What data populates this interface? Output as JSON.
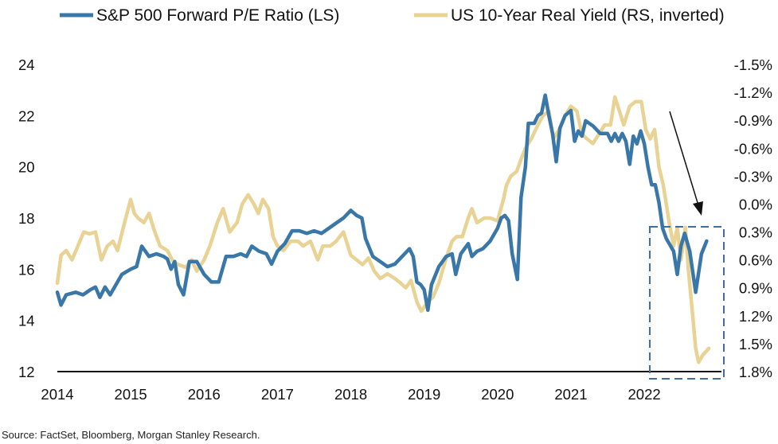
{
  "chart_data": {
    "type": "line",
    "x_axis": {
      "tick_labels": [
        "2014",
        "2015",
        "2016",
        "2017",
        "2018",
        "2019",
        "2020",
        "2021",
        "2022"
      ],
      "range": [
        2014.0,
        2022.9
      ]
    },
    "y_axis_left": {
      "tick_labels": [
        "24",
        "22",
        "20",
        "18",
        "16",
        "14",
        "12"
      ],
      "range": [
        12,
        24
      ]
    },
    "y_axis_right": {
      "tick_labels": [
        "-1.5%",
        "-1.2%",
        "-0.9%",
        "-0.6%",
        "-0.3%",
        "0.0%",
        "0.3%",
        "0.6%",
        "0.9%",
        "1.2%",
        "1.5%",
        "1.8%"
      ],
      "range": [
        -1.5,
        1.8
      ],
      "inverted": true
    },
    "series": [
      {
        "name": "S&P 500 Forward P/E Ratio (LS)",
        "axis": "left",
        "color": "#3a77a9",
        "points": [
          [
            2014.0,
            15.1
          ],
          [
            2014.05,
            14.6
          ],
          [
            2014.12,
            15.0
          ],
          [
            2014.25,
            15.1
          ],
          [
            2014.35,
            15.0
          ],
          [
            2014.45,
            15.2
          ],
          [
            2014.52,
            15.3
          ],
          [
            2014.58,
            14.9
          ],
          [
            2014.65,
            15.3
          ],
          [
            2014.72,
            15.0
          ],
          [
            2014.8,
            15.4
          ],
          [
            2014.88,
            15.8
          ],
          [
            2015.0,
            16.0
          ],
          [
            2015.08,
            16.1
          ],
          [
            2015.15,
            16.9
          ],
          [
            2015.25,
            16.5
          ],
          [
            2015.35,
            16.6
          ],
          [
            2015.45,
            16.5
          ],
          [
            2015.5,
            16.4
          ],
          [
            2015.55,
            16.0
          ],
          [
            2015.6,
            16.3
          ],
          [
            2015.65,
            15.4
          ],
          [
            2015.72,
            15.0
          ],
          [
            2015.8,
            16.3
          ],
          [
            2015.9,
            16.3
          ],
          [
            2016.0,
            15.8
          ],
          [
            2016.1,
            15.5
          ],
          [
            2016.2,
            15.5
          ],
          [
            2016.3,
            16.5
          ],
          [
            2016.4,
            16.5
          ],
          [
            2016.5,
            16.6
          ],
          [
            2016.58,
            16.5
          ],
          [
            2016.65,
            16.9
          ],
          [
            2016.75,
            16.7
          ],
          [
            2016.85,
            16.6
          ],
          [
            2016.92,
            16.2
          ],
          [
            2017.0,
            16.7
          ],
          [
            2017.1,
            17.0
          ],
          [
            2017.2,
            17.5
          ],
          [
            2017.3,
            17.5
          ],
          [
            2017.4,
            17.4
          ],
          [
            2017.5,
            17.5
          ],
          [
            2017.6,
            17.4
          ],
          [
            2017.7,
            17.6
          ],
          [
            2017.8,
            17.8
          ],
          [
            2017.9,
            18.0
          ],
          [
            2018.0,
            18.3
          ],
          [
            2018.08,
            18.1
          ],
          [
            2018.15,
            18.0
          ],
          [
            2018.2,
            17.2
          ],
          [
            2018.3,
            16.5
          ],
          [
            2018.4,
            16.3
          ],
          [
            2018.5,
            16.1
          ],
          [
            2018.6,
            16.2
          ],
          [
            2018.7,
            16.5
          ],
          [
            2018.8,
            16.8
          ],
          [
            2018.85,
            16.5
          ],
          [
            2018.9,
            15.5
          ],
          [
            2018.95,
            15.4
          ],
          [
            2019.0,
            15.2
          ],
          [
            2019.05,
            14.4
          ],
          [
            2019.1,
            15.4
          ],
          [
            2019.2,
            16.1
          ],
          [
            2019.3,
            16.5
          ],
          [
            2019.38,
            16.6
          ],
          [
            2019.43,
            15.8
          ],
          [
            2019.5,
            16.6
          ],
          [
            2019.6,
            17.0
          ],
          [
            2019.65,
            16.5
          ],
          [
            2019.72,
            16.7
          ],
          [
            2019.8,
            16.8
          ],
          [
            2019.9,
            17.1
          ],
          [
            2020.0,
            17.6
          ],
          [
            2020.05,
            18.0
          ],
          [
            2020.1,
            18.1
          ],
          [
            2020.15,
            17.9
          ],
          [
            2020.2,
            16.6
          ],
          [
            2020.27,
            15.6
          ],
          [
            2020.32,
            18.8
          ],
          [
            2020.38,
            20.0
          ],
          [
            2020.42,
            21.7
          ],
          [
            2020.5,
            21.7
          ],
          [
            2020.55,
            22.0
          ],
          [
            2020.6,
            22.1
          ],
          [
            2020.65,
            22.8
          ],
          [
            2020.7,
            22.0
          ],
          [
            2020.75,
            21.3
          ],
          [
            2020.8,
            20.2
          ],
          [
            2020.85,
            21.5
          ],
          [
            2020.92,
            22.0
          ],
          [
            2021.0,
            22.2
          ],
          [
            2021.05,
            21.0
          ],
          [
            2021.1,
            21.4
          ],
          [
            2021.15,
            21.2
          ],
          [
            2021.2,
            21.8
          ],
          [
            2021.3,
            21.6
          ],
          [
            2021.4,
            21.3
          ],
          [
            2021.5,
            21.3
          ],
          [
            2021.55,
            21.0
          ],
          [
            2021.6,
            21.3
          ],
          [
            2021.65,
            21.0
          ],
          [
            2021.7,
            21.3
          ],
          [
            2021.75,
            21.0
          ],
          [
            2021.8,
            20.1
          ],
          [
            2021.85,
            21.2
          ],
          [
            2021.9,
            20.9
          ],
          [
            2021.95,
            21.4
          ],
          [
            2022.0,
            20.9
          ],
          [
            2022.05,
            20.0
          ],
          [
            2022.1,
            19.3
          ],
          [
            2022.15,
            19.3
          ],
          [
            2022.2,
            18.6
          ],
          [
            2022.25,
            17.6
          ],
          [
            2022.3,
            17.2
          ],
          [
            2022.4,
            16.7
          ],
          [
            2022.45,
            15.8
          ],
          [
            2022.5,
            16.9
          ],
          [
            2022.55,
            17.4
          ],
          [
            2022.62,
            16.7
          ],
          [
            2022.7,
            15.1
          ],
          [
            2022.78,
            16.6
          ],
          [
            2022.85,
            17.1
          ]
        ]
      },
      {
        "name": "US 10-Year Real Yield (RS, inverted)",
        "axis": "right",
        "color": "#e8d394",
        "points": [
          [
            2014.0,
            0.85
          ],
          [
            2014.05,
            0.55
          ],
          [
            2014.12,
            0.5
          ],
          [
            2014.2,
            0.6
          ],
          [
            2014.28,
            0.45
          ],
          [
            2014.36,
            0.3
          ],
          [
            2014.44,
            0.32
          ],
          [
            2014.52,
            0.3
          ],
          [
            2014.6,
            0.6
          ],
          [
            2014.68,
            0.45
          ],
          [
            2014.76,
            0.4
          ],
          [
            2014.82,
            0.5
          ],
          [
            2014.9,
            0.25
          ],
          [
            2015.0,
            -0.05
          ],
          [
            2015.05,
            0.1
          ],
          [
            2015.1,
            0.15
          ],
          [
            2015.18,
            0.2
          ],
          [
            2015.25,
            0.1
          ],
          [
            2015.32,
            0.28
          ],
          [
            2015.4,
            0.45
          ],
          [
            2015.5,
            0.5
          ],
          [
            2015.58,
            0.62
          ],
          [
            2015.65,
            0.65
          ],
          [
            2015.75,
            0.68
          ],
          [
            2015.83,
            0.6
          ],
          [
            2015.9,
            0.72
          ],
          [
            2016.0,
            0.6
          ],
          [
            2016.08,
            0.45
          ],
          [
            2016.18,
            0.2
          ],
          [
            2016.26,
            0.05
          ],
          [
            2016.35,
            0.3
          ],
          [
            2016.45,
            0.2
          ],
          [
            2016.52,
            0.0
          ],
          [
            2016.6,
            -0.1
          ],
          [
            2016.68,
            0.0
          ],
          [
            2016.74,
            0.1
          ],
          [
            2016.8,
            -0.05
          ],
          [
            2016.88,
            0.05
          ],
          [
            2016.94,
            0.35
          ],
          [
            2017.0,
            0.45
          ],
          [
            2017.08,
            0.5
          ],
          [
            2017.18,
            0.4
          ],
          [
            2017.28,
            0.4
          ],
          [
            2017.35,
            0.45
          ],
          [
            2017.45,
            0.4
          ],
          [
            2017.55,
            0.6
          ],
          [
            2017.62,
            0.45
          ],
          [
            2017.72,
            0.45
          ],
          [
            2017.8,
            0.4
          ],
          [
            2017.9,
            0.3
          ],
          [
            2018.0,
            0.55
          ],
          [
            2018.08,
            0.6
          ],
          [
            2018.16,
            0.65
          ],
          [
            2018.24,
            0.58
          ],
          [
            2018.32,
            0.72
          ],
          [
            2018.4,
            0.8
          ],
          [
            2018.5,
            0.75
          ],
          [
            2018.6,
            0.8
          ],
          [
            2018.68,
            0.85
          ],
          [
            2018.75,
            0.9
          ],
          [
            2018.82,
            0.82
          ],
          [
            2018.9,
            1.05
          ],
          [
            2018.96,
            1.15
          ],
          [
            2019.05,
            1.05
          ],
          [
            2019.12,
            1.0
          ],
          [
            2019.2,
            0.85
          ],
          [
            2019.3,
            0.58
          ],
          [
            2019.38,
            0.4
          ],
          [
            2019.44,
            0.35
          ],
          [
            2019.52,
            0.35
          ],
          [
            2019.6,
            0.15
          ],
          [
            2019.65,
            0.05
          ],
          [
            2019.72,
            0.2
          ],
          [
            2019.82,
            0.15
          ],
          [
            2019.9,
            0.15
          ],
          [
            2020.0,
            0.18
          ],
          [
            2020.08,
            -0.05
          ],
          [
            2020.12,
            -0.2
          ],
          [
            2020.18,
            -0.3
          ],
          [
            2020.26,
            -0.35
          ],
          [
            2020.32,
            -0.48
          ],
          [
            2020.38,
            -0.6
          ],
          [
            2020.46,
            -0.7
          ],
          [
            2020.55,
            -0.85
          ],
          [
            2020.62,
            -0.95
          ],
          [
            2020.7,
            -1.0
          ],
          [
            2020.76,
            -0.7
          ],
          [
            2020.84,
            -0.8
          ],
          [
            2020.92,
            -0.95
          ],
          [
            2021.0,
            -1.05
          ],
          [
            2021.08,
            -1.0
          ],
          [
            2021.15,
            -0.75
          ],
          [
            2021.22,
            -0.7
          ],
          [
            2021.3,
            -0.65
          ],
          [
            2021.38,
            -0.75
          ],
          [
            2021.46,
            -0.85
          ],
          [
            2021.54,
            -0.85
          ],
          [
            2021.6,
            -1.15
          ],
          [
            2021.66,
            -1.0
          ],
          [
            2021.72,
            -0.85
          ],
          [
            2021.8,
            -1.05
          ],
          [
            2021.88,
            -1.1
          ],
          [
            2021.96,
            -1.1
          ],
          [
            2022.02,
            -0.8
          ],
          [
            2022.08,
            -0.7
          ],
          [
            2022.14,
            -0.8
          ],
          [
            2022.2,
            -0.4
          ],
          [
            2022.26,
            -0.2
          ],
          [
            2022.34,
            0.2
          ],
          [
            2022.4,
            0.45
          ],
          [
            2022.45,
            0.25
          ],
          [
            2022.5,
            0.6
          ],
          [
            2022.56,
            0.25
          ],
          [
            2022.6,
            0.7
          ],
          [
            2022.66,
            1.2
          ],
          [
            2022.7,
            1.55
          ],
          [
            2022.74,
            1.7
          ],
          [
            2022.8,
            1.62
          ],
          [
            2022.88,
            1.55
          ]
        ]
      }
    ],
    "annotations": [
      "dashed box highlighting 2022 divergence",
      "arrow pointing down into box"
    ],
    "source_note": "Source: FactSet, Bloomberg, Morgan Stanley Research."
  }
}
